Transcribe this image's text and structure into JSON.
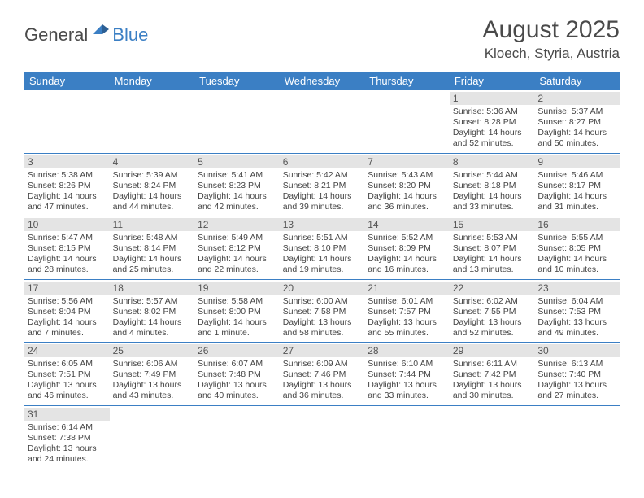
{
  "logo": {
    "part1": "General",
    "part2": "Blue"
  },
  "title": "August 2025",
  "location": "Kloech, Styria, Austria",
  "columns": [
    "Sunday",
    "Monday",
    "Tuesday",
    "Wednesday",
    "Thursday",
    "Friday",
    "Saturday"
  ],
  "colors": {
    "header_bg": "#3b7fc4",
    "header_text": "#ffffff",
    "daynum_bg": "#e4e4e4",
    "border": "#3b7fc4",
    "text": "#4a4a4a"
  },
  "weeks": [
    [
      null,
      null,
      null,
      null,
      null,
      {
        "n": "1",
        "sr": "Sunrise: 5:36 AM",
        "ss": "Sunset: 8:28 PM",
        "dl": "Daylight: 14 hours and 52 minutes."
      },
      {
        "n": "2",
        "sr": "Sunrise: 5:37 AM",
        "ss": "Sunset: 8:27 PM",
        "dl": "Daylight: 14 hours and 50 minutes."
      }
    ],
    [
      {
        "n": "3",
        "sr": "Sunrise: 5:38 AM",
        "ss": "Sunset: 8:26 PM",
        "dl": "Daylight: 14 hours and 47 minutes."
      },
      {
        "n": "4",
        "sr": "Sunrise: 5:39 AM",
        "ss": "Sunset: 8:24 PM",
        "dl": "Daylight: 14 hours and 44 minutes."
      },
      {
        "n": "5",
        "sr": "Sunrise: 5:41 AM",
        "ss": "Sunset: 8:23 PM",
        "dl": "Daylight: 14 hours and 42 minutes."
      },
      {
        "n": "6",
        "sr": "Sunrise: 5:42 AM",
        "ss": "Sunset: 8:21 PM",
        "dl": "Daylight: 14 hours and 39 minutes."
      },
      {
        "n": "7",
        "sr": "Sunrise: 5:43 AM",
        "ss": "Sunset: 8:20 PM",
        "dl": "Daylight: 14 hours and 36 minutes."
      },
      {
        "n": "8",
        "sr": "Sunrise: 5:44 AM",
        "ss": "Sunset: 8:18 PM",
        "dl": "Daylight: 14 hours and 33 minutes."
      },
      {
        "n": "9",
        "sr": "Sunrise: 5:46 AM",
        "ss": "Sunset: 8:17 PM",
        "dl": "Daylight: 14 hours and 31 minutes."
      }
    ],
    [
      {
        "n": "10",
        "sr": "Sunrise: 5:47 AM",
        "ss": "Sunset: 8:15 PM",
        "dl": "Daylight: 14 hours and 28 minutes."
      },
      {
        "n": "11",
        "sr": "Sunrise: 5:48 AM",
        "ss": "Sunset: 8:14 PM",
        "dl": "Daylight: 14 hours and 25 minutes."
      },
      {
        "n": "12",
        "sr": "Sunrise: 5:49 AM",
        "ss": "Sunset: 8:12 PM",
        "dl": "Daylight: 14 hours and 22 minutes."
      },
      {
        "n": "13",
        "sr": "Sunrise: 5:51 AM",
        "ss": "Sunset: 8:10 PM",
        "dl": "Daylight: 14 hours and 19 minutes."
      },
      {
        "n": "14",
        "sr": "Sunrise: 5:52 AM",
        "ss": "Sunset: 8:09 PM",
        "dl": "Daylight: 14 hours and 16 minutes."
      },
      {
        "n": "15",
        "sr": "Sunrise: 5:53 AM",
        "ss": "Sunset: 8:07 PM",
        "dl": "Daylight: 14 hours and 13 minutes."
      },
      {
        "n": "16",
        "sr": "Sunrise: 5:55 AM",
        "ss": "Sunset: 8:05 PM",
        "dl": "Daylight: 14 hours and 10 minutes."
      }
    ],
    [
      {
        "n": "17",
        "sr": "Sunrise: 5:56 AM",
        "ss": "Sunset: 8:04 PM",
        "dl": "Daylight: 14 hours and 7 minutes."
      },
      {
        "n": "18",
        "sr": "Sunrise: 5:57 AM",
        "ss": "Sunset: 8:02 PM",
        "dl": "Daylight: 14 hours and 4 minutes."
      },
      {
        "n": "19",
        "sr": "Sunrise: 5:58 AM",
        "ss": "Sunset: 8:00 PM",
        "dl": "Daylight: 14 hours and 1 minute."
      },
      {
        "n": "20",
        "sr": "Sunrise: 6:00 AM",
        "ss": "Sunset: 7:58 PM",
        "dl": "Daylight: 13 hours and 58 minutes."
      },
      {
        "n": "21",
        "sr": "Sunrise: 6:01 AM",
        "ss": "Sunset: 7:57 PM",
        "dl": "Daylight: 13 hours and 55 minutes."
      },
      {
        "n": "22",
        "sr": "Sunrise: 6:02 AM",
        "ss": "Sunset: 7:55 PM",
        "dl": "Daylight: 13 hours and 52 minutes."
      },
      {
        "n": "23",
        "sr": "Sunrise: 6:04 AM",
        "ss": "Sunset: 7:53 PM",
        "dl": "Daylight: 13 hours and 49 minutes."
      }
    ],
    [
      {
        "n": "24",
        "sr": "Sunrise: 6:05 AM",
        "ss": "Sunset: 7:51 PM",
        "dl": "Daylight: 13 hours and 46 minutes."
      },
      {
        "n": "25",
        "sr": "Sunrise: 6:06 AM",
        "ss": "Sunset: 7:49 PM",
        "dl": "Daylight: 13 hours and 43 minutes."
      },
      {
        "n": "26",
        "sr": "Sunrise: 6:07 AM",
        "ss": "Sunset: 7:48 PM",
        "dl": "Daylight: 13 hours and 40 minutes."
      },
      {
        "n": "27",
        "sr": "Sunrise: 6:09 AM",
        "ss": "Sunset: 7:46 PM",
        "dl": "Daylight: 13 hours and 36 minutes."
      },
      {
        "n": "28",
        "sr": "Sunrise: 6:10 AM",
        "ss": "Sunset: 7:44 PM",
        "dl": "Daylight: 13 hours and 33 minutes."
      },
      {
        "n": "29",
        "sr": "Sunrise: 6:11 AM",
        "ss": "Sunset: 7:42 PM",
        "dl": "Daylight: 13 hours and 30 minutes."
      },
      {
        "n": "30",
        "sr": "Sunrise: 6:13 AM",
        "ss": "Sunset: 7:40 PM",
        "dl": "Daylight: 13 hours and 27 minutes."
      }
    ],
    [
      {
        "n": "31",
        "sr": "Sunrise: 6:14 AM",
        "ss": "Sunset: 7:38 PM",
        "dl": "Daylight: 13 hours and 24 minutes."
      },
      null,
      null,
      null,
      null,
      null,
      null
    ]
  ]
}
